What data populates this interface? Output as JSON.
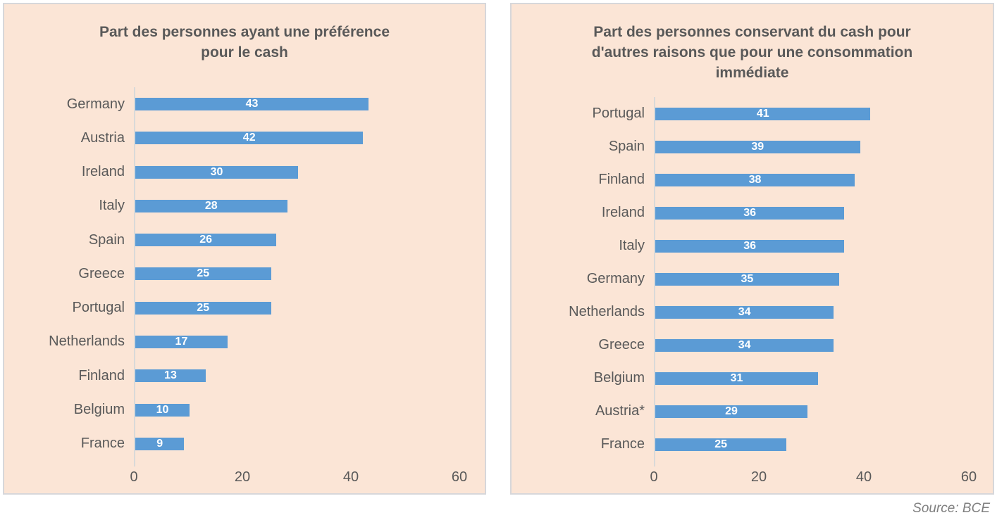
{
  "page": {
    "source_note": "Source: BCE"
  },
  "style": {
    "panel_bg": "#fbe5d6",
    "panel_border": "#d7d7da",
    "bar_color": "#5b9bd5",
    "text_color": "#595959",
    "value_label_color": "#ffffff",
    "axis_line_color": "#d9d9d9",
    "source_color": "#7f7f7f"
  },
  "chart_data": [
    {
      "type": "bar",
      "orientation": "horizontal",
      "title": "Part des personnes ayant une préférence pour le cash",
      "categories": [
        "Germany",
        "Austria",
        "Ireland",
        "Italy",
        "Spain",
        "Greece",
        "Portugal",
        "Netherlands",
        "Finland",
        "Belgium",
        "France"
      ],
      "values": [
        43,
        42,
        30,
        28,
        26,
        25,
        25,
        17,
        13,
        10,
        9
      ],
      "value_labels": "centered-inside-bars",
      "xlabel": "",
      "ylabel": "",
      "xlim": [
        0,
        60
      ],
      "xticks": [
        0,
        20,
        40,
        60
      ],
      "grid": false,
      "legend": false
    },
    {
      "type": "bar",
      "orientation": "horizontal",
      "title": "Part des personnes conservant du cash pour d'autres raisons que pour une consommation immédiate",
      "categories": [
        "Portugal",
        "Spain",
        "Finland",
        "Ireland",
        "Italy",
        "Germany",
        "Netherlands",
        "Greece",
        "Belgium",
        "Austria*",
        "France"
      ],
      "values": [
        41,
        39,
        38,
        36,
        36,
        35,
        34,
        34,
        31,
        29,
        25
      ],
      "value_labels": "centered-inside-bars",
      "xlabel": "",
      "ylabel": "",
      "xlim": [
        0,
        60
      ],
      "xticks": [
        0,
        20,
        40,
        60
      ],
      "grid": false,
      "legend": false
    }
  ]
}
